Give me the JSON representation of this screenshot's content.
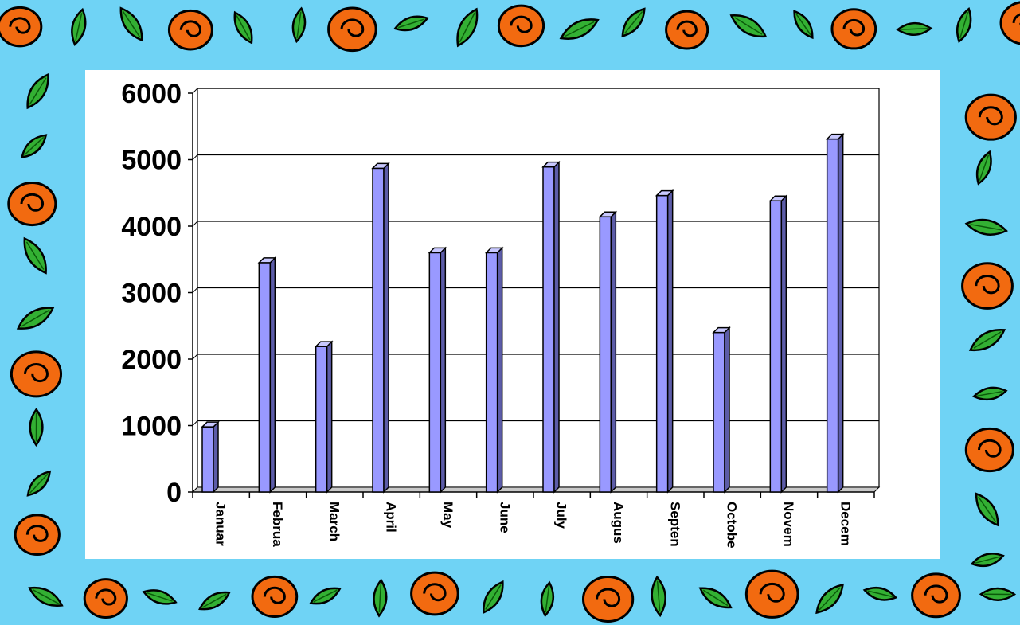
{
  "chart_data": {
    "type": "bar",
    "categories": [
      "January",
      "February",
      "March",
      "April",
      "May",
      "June",
      "July",
      "August",
      "September",
      "October",
      "November",
      "December"
    ],
    "tick_labels": [
      "Januar",
      "Februa",
      "March",
      "April",
      "May",
      "June",
      "July",
      "Augus",
      "Septen",
      "Octobe",
      "Novem",
      "Decem"
    ],
    "values": [
      980,
      3450,
      2190,
      4870,
      3600,
      3600,
      4890,
      4140,
      4460,
      2400,
      4380,
      5310
    ],
    "ylim": [
      0,
      6000
    ],
    "yticks": [
      0,
      1000,
      2000,
      3000,
      4000,
      5000,
      6000
    ],
    "title": "",
    "xlabel": "",
    "ylabel": "",
    "grid": true,
    "legend": "none",
    "bar_color": "#9999ff",
    "bar_side_color": "#5c5ca8",
    "bar_top_color": "#c8c8ff"
  },
  "colors": {
    "background": "#6fd3f5",
    "panel": "#ffffff",
    "rose": "#f26a10",
    "leaf": "#33b033"
  }
}
